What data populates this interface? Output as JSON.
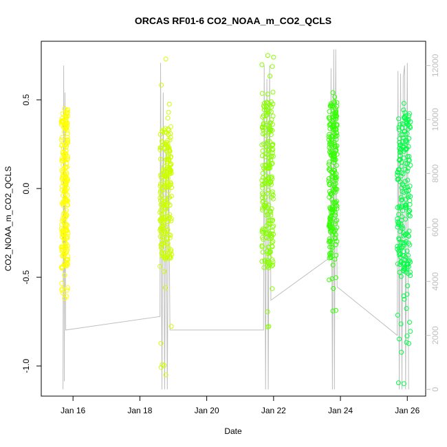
{
  "chart_data": {
    "type": "scatter",
    "title": "ORCAS RF01-6 CO2_NOAA_m_CO2_QCLS",
    "xlabel": "Date",
    "ylabel": "CO2_NOAA_m_CO2_QCLS",
    "x_ticks": [
      "Jan 16",
      "Jan 18",
      "Jan 20",
      "Jan 22",
      "Jan 24",
      "Jan 26"
    ],
    "x_tick_days": [
      16,
      18,
      20,
      22,
      24,
      26
    ],
    "x_range_days": [
      15.05,
      26.55
    ],
    "y_ticks": [
      "-1.0",
      "-0.5",
      "0.0",
      "0.5"
    ],
    "y_tick_values": [
      -1.0,
      -0.5,
      0.0,
      0.5
    ],
    "ylim": [
      -1.17,
      0.83
    ],
    "y2_ticks": [
      "0",
      "2000",
      "4000",
      "6000",
      "8000",
      "10000",
      "12000"
    ],
    "y2_tick_values": [
      0,
      2000,
      4000,
      6000,
      8000,
      10000,
      12000
    ],
    "y2lim": [
      -250,
      12900
    ],
    "y2_color": "#bebebe",
    "series": [
      {
        "color": "#ffff00",
        "x_range": [
          15.65,
          15.85
        ],
        "y_range": [
          -0.45,
          0.45
        ],
        "y_min": -0.62,
        "y_max": 0.45
      },
      {
        "color": "#ccff00",
        "x_range": [
          18.6,
          18.95
        ],
        "y_range": [
          -0.4,
          0.35
        ],
        "y_min": -1.05,
        "y_max": 0.73
      },
      {
        "color": "#88ff00",
        "x_range": [
          21.65,
          22.0
        ],
        "y_range": [
          -0.45,
          0.5
        ],
        "y_min": -0.78,
        "y_max": 0.75
      },
      {
        "color": "#33ff00",
        "x_range": [
          23.65,
          23.9
        ],
        "y_range": [
          -0.4,
          0.5
        ],
        "y_min": -0.69,
        "y_max": 0.54
      },
      {
        "color": "#00ff44",
        "x_range": [
          25.7,
          26.1
        ],
        "y_range": [
          -0.5,
          0.45
        ],
        "y_min": -1.1,
        "y_max": 0.48
      }
    ],
    "altitude_track": [
      [
        15.7,
        0
      ],
      [
        15.72,
        12000
      ],
      [
        15.74,
        300
      ],
      [
        15.76,
        11000
      ],
      [
        15.78,
        2200
      ],
      [
        18.6,
        2700
      ],
      [
        18.62,
        12100
      ],
      [
        18.66,
        0
      ],
      [
        18.7,
        11000
      ],
      [
        18.74,
        0
      ],
      [
        18.78,
        9200
      ],
      [
        18.82,
        0
      ],
      [
        18.86,
        9000
      ],
      [
        18.9,
        2200
      ],
      [
        21.7,
        2200
      ],
      [
        21.72,
        12000
      ],
      [
        21.76,
        0
      ],
      [
        21.8,
        11500
      ],
      [
        21.84,
        0
      ],
      [
        21.88,
        12000
      ],
      [
        21.92,
        3300
      ],
      [
        23.7,
        4900
      ],
      [
        23.72,
        11900
      ],
      [
        23.76,
        0
      ],
      [
        23.8,
        12600
      ],
      [
        23.82,
        0
      ],
      [
        23.86,
        12600
      ],
      [
        23.9,
        3800
      ],
      [
        25.7,
        2000
      ],
      [
        25.72,
        11800
      ],
      [
        25.76,
        0
      ],
      [
        25.8,
        11700
      ],
      [
        25.84,
        0
      ],
      [
        25.88,
        11600
      ],
      [
        25.92,
        12000
      ],
      [
        25.95,
        0
      ],
      [
        26.0,
        12100
      ],
      [
        26.04,
        0
      ]
    ]
  }
}
